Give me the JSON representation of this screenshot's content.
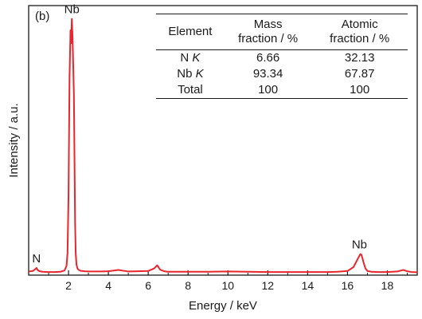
{
  "chart_data": {
    "type": "line",
    "panel_label": "(b)",
    "xlabel": "Energy / keV",
    "ylabel": "Intensity / a.u.",
    "xlim": [
      0,
      19.5
    ],
    "ylim": [
      0,
      100
    ],
    "x_ticks": [
      2,
      4,
      6,
      8,
      10,
      12,
      14,
      16,
      18
    ],
    "y_ticks_shown": false,
    "line_color": "#e8262d",
    "series": [
      {
        "x": [
          0.0,
          0.2,
          0.3,
          0.392,
          0.45,
          0.55,
          0.7,
          1.0,
          1.3,
          1.6,
          1.8,
          1.9,
          1.95,
          2.0,
          2.05,
          2.1,
          2.13,
          2.166,
          2.2,
          2.24,
          2.27,
          2.3,
          2.33,
          2.36,
          2.4,
          2.45,
          2.5,
          2.6,
          2.8,
          3.0,
          3.5,
          4.0,
          4.5,
          5.0,
          5.5,
          6.0,
          6.3,
          6.45,
          6.6,
          6.8,
          7.0,
          8.0,
          9.0,
          10.0,
          11.0,
          12.0,
          13.0,
          14.0,
          15.0,
          15.5,
          16.0,
          16.3,
          16.5,
          16.6,
          16.65,
          16.7,
          16.75,
          16.8,
          16.9,
          17.0,
          17.2,
          17.5,
          18.0,
          18.5,
          18.8,
          19.0,
          19.2,
          19.5
        ],
        "y": [
          0.8,
          1.0,
          1.5,
          2.2,
          1.4,
          0.9,
          0.7,
          0.6,
          0.6,
          0.7,
          1.2,
          3.0,
          8.0,
          30.0,
          76.0,
          95.0,
          90.0,
          99.5,
          93.0,
          80.0,
          70.0,
          45.0,
          20.0,
          8.0,
          3.5,
          2.0,
          1.5,
          1.1,
          0.9,
          0.8,
          0.8,
          0.9,
          1.4,
          0.8,
          0.9,
          1.0,
          2.0,
          3.2,
          1.5,
          0.9,
          0.7,
          0.7,
          0.7,
          0.8,
          0.7,
          0.6,
          0.6,
          0.6,
          0.6,
          0.7,
          1.0,
          2.5,
          5.5,
          7.0,
          7.6,
          7.3,
          6.0,
          4.5,
          2.0,
          1.0,
          0.7,
          0.6,
          0.6,
          0.8,
          1.4,
          0.9,
          0.6,
          0.5
        ]
      }
    ],
    "annotations": [
      {
        "text": "Nb",
        "x": 2.166,
        "y": 99.5
      },
      {
        "text": "N",
        "x": 0.392,
        "y": 2.2
      },
      {
        "text": "Nb",
        "x": 16.6,
        "y": 7.6
      }
    ]
  },
  "table": {
    "headers": [
      "Element",
      "Mass fraction / %",
      "Atomic fraction / %"
    ],
    "header_lines": [
      [
        "Element"
      ],
      [
        "Mass",
        "fraction / %"
      ],
      [
        "Atomic",
        "fraction / %"
      ]
    ],
    "rows": [
      {
        "element": "N",
        "line": "K",
        "mass": "6.66",
        "atomic": "32.13"
      },
      {
        "element": "Nb",
        "line": "K",
        "mass": "93.34",
        "atomic": "67.87"
      },
      {
        "element": "Total",
        "line": "",
        "mass": "100",
        "atomic": "100"
      }
    ]
  }
}
